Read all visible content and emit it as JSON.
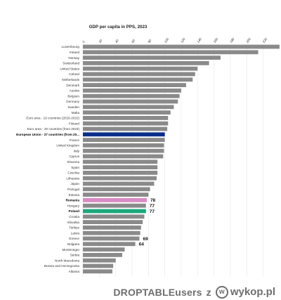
{
  "chart_data": {
    "type": "bar",
    "orientation": "horizontal",
    "title": "GDP per capita in PPS, 2023",
    "xlim": [
      0,
      240
    ],
    "x_ticks": [
      "0",
      "20",
      "40",
      "60",
      "80",
      "100",
      "120",
      "140",
      "160",
      "180",
      "200",
      "220"
    ],
    "grid": true,
    "categories": [
      "Luxembourg",
      "Ireland",
      "Norway",
      "Switzerland",
      "United States",
      "Iceland",
      "Netherlands",
      "Denmark",
      "Austria",
      "Belgium",
      "Germany",
      "Sweden",
      "Malta",
      "Euro area - 19 countries  (2015-2022)",
      "Finland",
      "Euro area - 20 countries (from 2023)",
      "European Union - 27 countries (from 20...",
      "France",
      "United Kingdom",
      "Italy",
      "Cyprus",
      "Slovenia",
      "Spain",
      "Czechia",
      "Lithuania",
      "Japan",
      "Portugal",
      "Estonia",
      "Romania",
      "Hungary",
      "Poland",
      "Croatia",
      "Slovakia",
      "Türkiye",
      "Latvia",
      "Greece",
      "Bulgaria",
      "Montenegro",
      "Serbia",
      "North Macedonia",
      "Bosnia and Herzegovina",
      "Albania"
    ],
    "values": [
      240,
      214,
      168,
      154,
      140,
      137,
      134,
      126,
      120,
      118,
      116,
      111,
      107,
      104,
      104,
      103,
      100,
      100,
      99,
      99,
      98,
      91,
      91,
      91,
      90,
      87,
      82,
      80,
      78,
      77,
      77,
      75,
      73,
      71,
      70,
      69,
      64,
      51,
      48,
      40,
      37,
      36
    ],
    "bar_color": "#8a8a8a",
    "highlights": [
      {
        "category": "European Union - 27 countries (from 20...",
        "color": "#0b2e8a",
        "label": ""
      },
      {
        "category": "Romania",
        "color": "#d98ac4",
        "label": "78"
      },
      {
        "category": "Hungary",
        "color": "#8a8a8a",
        "label": "77"
      },
      {
        "category": "Poland",
        "color": "#1aa87a",
        "label": "77"
      },
      {
        "category": "Greece",
        "color": "#8a8a8a",
        "label": "69"
      },
      {
        "category": "Bulgaria",
        "color": "#8a8a8a",
        "label": "64"
      }
    ],
    "bold_categories": [
      "European Union - 27 countries (from 20...",
      "Romania",
      "Poland"
    ]
  },
  "footer": {
    "user": "DROPTABLEusers",
    "separator": "z",
    "logo_glyph": "w",
    "logo_text": "wykop.pl"
  }
}
